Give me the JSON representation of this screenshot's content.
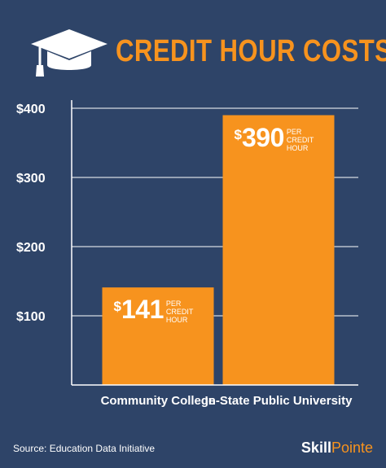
{
  "header": {
    "title": "CREDIT HOUR COSTS",
    "icon": "graduation-cap-icon"
  },
  "colors": {
    "background": "#2e4468",
    "accent": "#f7931e",
    "text": "#ffffff"
  },
  "chart_data": {
    "type": "bar",
    "title": "CREDIT HOUR COSTS",
    "categories": [
      "Community College",
      "In-State Public University"
    ],
    "values": [
      141,
      390
    ],
    "ylim": [
      0,
      400
    ],
    "yticks": [
      100,
      200,
      300,
      400
    ],
    "ytick_labels": [
      "$100",
      "$200",
      "$300",
      "$400"
    ],
    "grid": true,
    "data_labels": [
      {
        "currency": "$",
        "value": "141",
        "unit_line1": "PER",
        "unit_line2": "CREDIT",
        "unit_line3": "HOUR"
      },
      {
        "currency": "$",
        "value": "390",
        "unit_line1": "PER",
        "unit_line2": "CREDIT",
        "unit_line3": "HOUR"
      }
    ]
  },
  "footer": {
    "source": "Source: Education Data Initiative",
    "brand_part1": "Skill",
    "brand_part2": "Pointe"
  }
}
